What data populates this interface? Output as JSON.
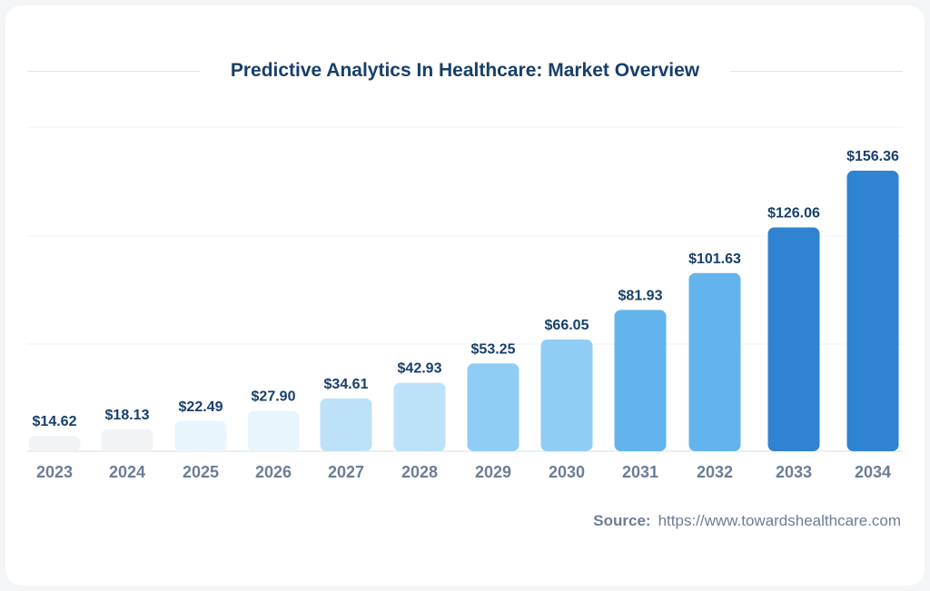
{
  "chart_data": {
    "type": "bar",
    "title": "Predictive Analytics In Healthcare: Market Overview",
    "categories": [
      "2023",
      "2024",
      "2025",
      "2026",
      "2027",
      "2028",
      "2029",
      "2030",
      "2031",
      "2032",
      "2033",
      "2034"
    ],
    "values": [
      14.62,
      18.13,
      22.49,
      27.9,
      34.61,
      42.93,
      53.25,
      66.05,
      81.93,
      101.63,
      126.06,
      156.36
    ],
    "data_labels": [
      "$14.62",
      "$18.13",
      "$22.49",
      "$27.90",
      "$34.61",
      "$42.93",
      "$53.25",
      "$66.05",
      "$81.93",
      "$101.63",
      "$126.06",
      "$156.36"
    ],
    "colors": [
      "#f2f3f5",
      "#f2f3f5",
      "#e8f5fd",
      "#e8f5fd",
      "#bde2f7",
      "#bde2f7",
      "#8fcdf4",
      "#8fcdf4",
      "#63b4ec",
      "#63b4ec",
      "#3083d0",
      "#3083d0"
    ],
    "xlabel": "",
    "ylabel": "",
    "grid": true,
    "legend": "none"
  },
  "source": {
    "label": "Source:",
    "url": "https://www.towardshealthcare.com"
  }
}
